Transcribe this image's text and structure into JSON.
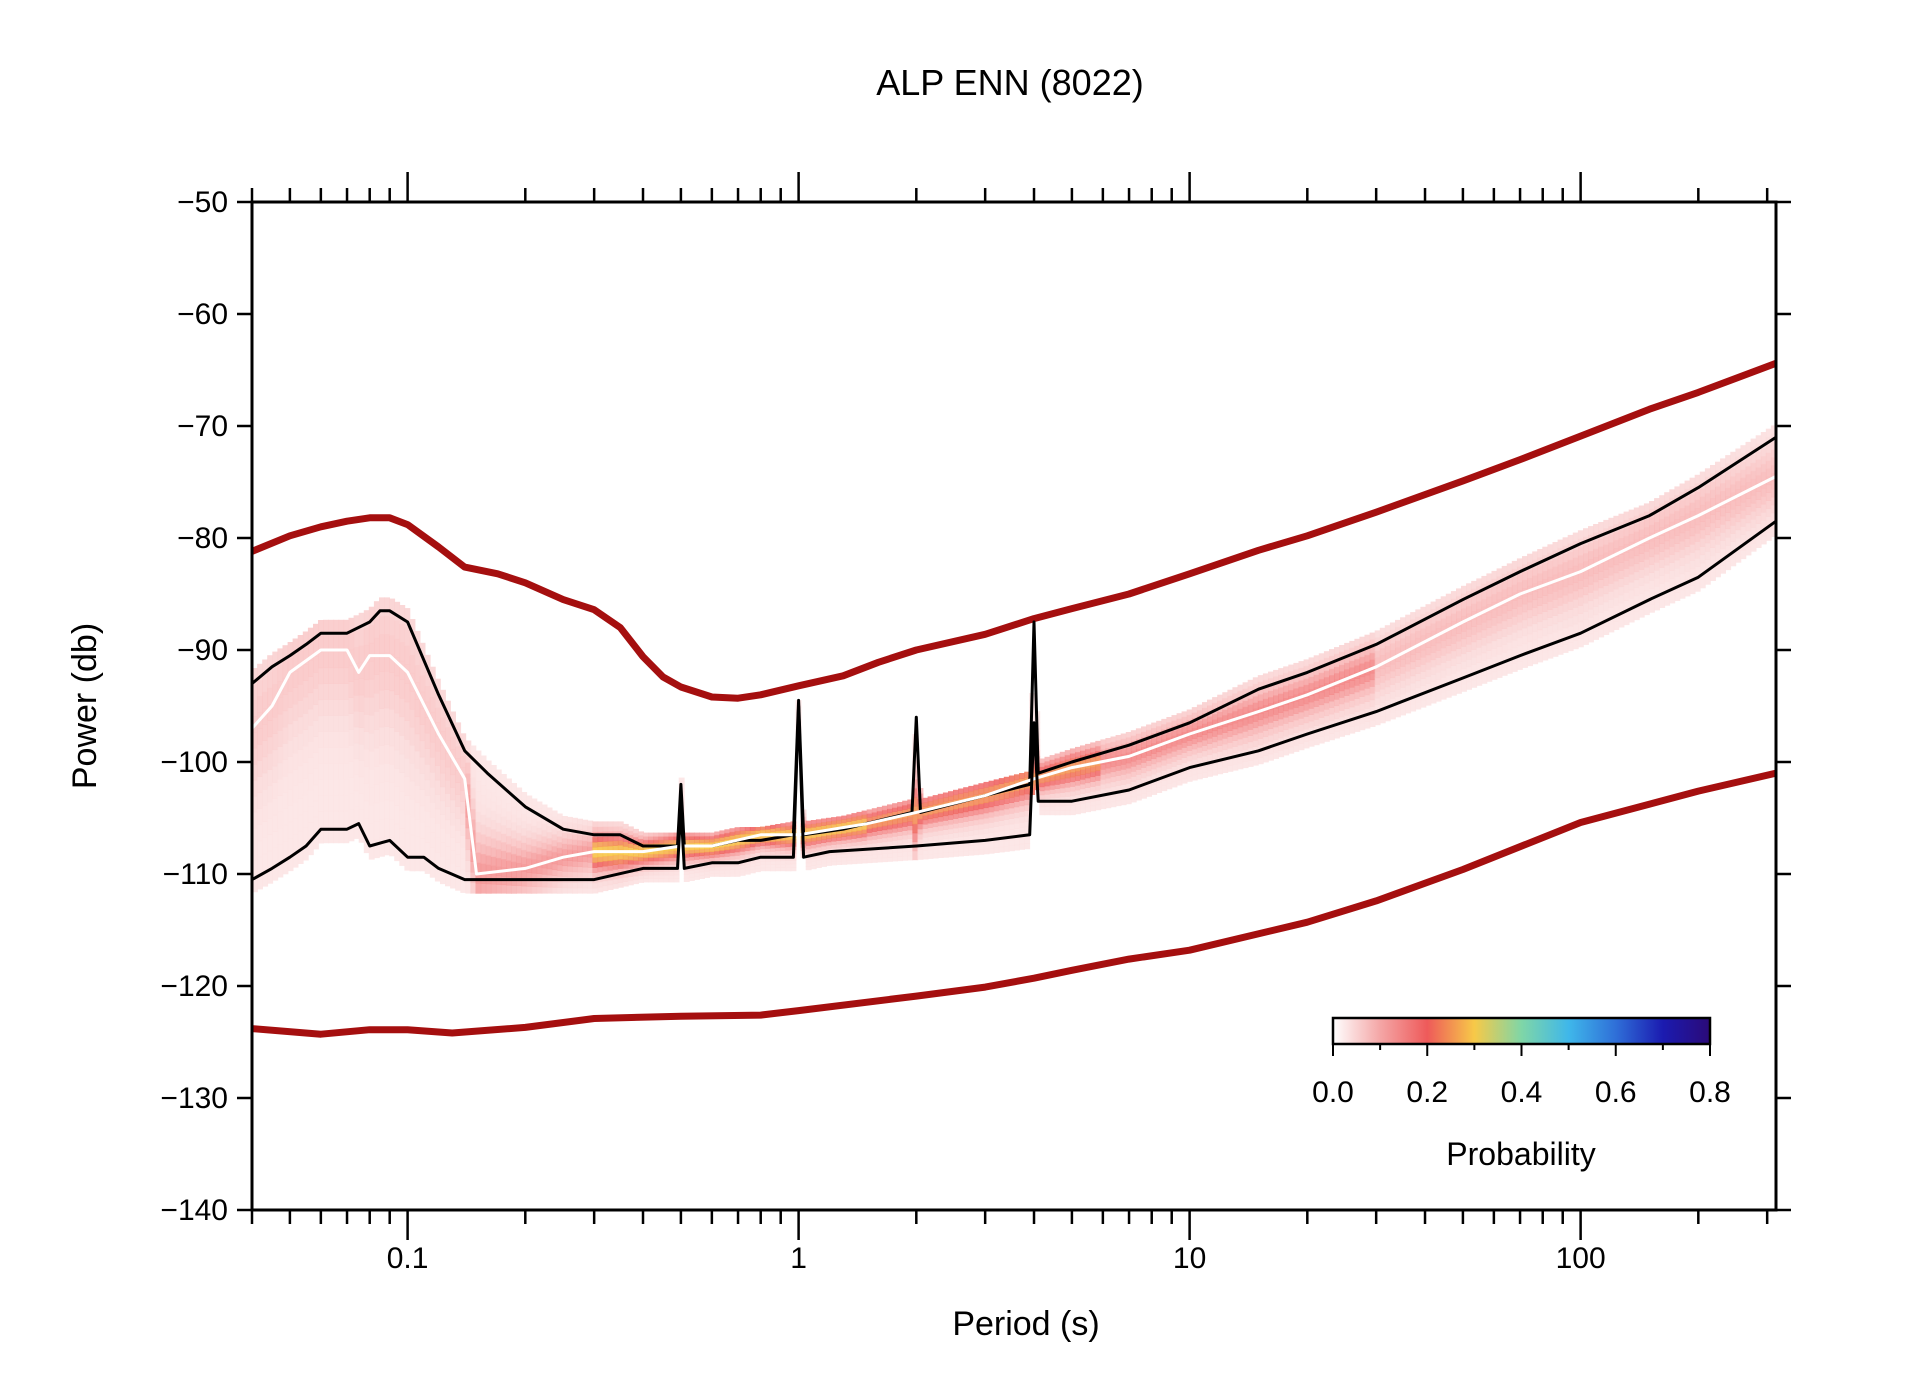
{
  "chart_data": {
    "type": "line",
    "title": "ALP ENN (8022)",
    "xlabel": "Period (s)",
    "ylabel": "Power (db)",
    "x_scale": "log",
    "xlim": [
      0.04,
      316
    ],
    "ylim": [
      -140,
      -50
    ],
    "x_ticks": [
      {
        "value": 0.1,
        "label": "0.1"
      },
      {
        "value": 1,
        "label": "1"
      },
      {
        "value": 10,
        "label": "10"
      },
      {
        "value": 100,
        "label": "100"
      }
    ],
    "y_ticks": [
      {
        "value": -50,
        "label": "−50"
      },
      {
        "value": -60,
        "label": "−60"
      },
      {
        "value": -70,
        "label": "−70"
      },
      {
        "value": -80,
        "label": "−80"
      },
      {
        "value": -90,
        "label": "−90"
      },
      {
        "value": -100,
        "label": "−100"
      },
      {
        "value": -110,
        "label": "−110"
      },
      {
        "value": -120,
        "label": "−120"
      },
      {
        "value": -130,
        "label": "−130"
      },
      {
        "value": -140,
        "label": "−140"
      }
    ],
    "grid": false,
    "colors": {
      "noise_model": "#a50f0f",
      "percentile": "#000000",
      "mode": "#ffffff",
      "frame": "#000000"
    },
    "colorbar": {
      "label": "Probability",
      "range": [
        0,
        0.8
      ],
      "ticks": [
        "0.0",
        "0.2",
        "0.4",
        "0.6",
        "0.8"
      ],
      "colors": [
        "#ffffff",
        "#f4a6a6",
        "#ee5a5a",
        "#f7c948",
        "#7fd6a7",
        "#3fb7ea",
        "#2f6fd8",
        "#1b1bb0",
        "#2b0a78"
      ],
      "placement": "lower-right"
    },
    "series": [
      {
        "role": "high-noise-model",
        "x": [
          0.04,
          0.05,
          0.06,
          0.07,
          0.08,
          0.09,
          0.1,
          0.12,
          0.14,
          0.17,
          0.2,
          0.25,
          0.3,
          0.35,
          0.4,
          0.45,
          0.5,
          0.6,
          0.7,
          0.8,
          1,
          1.3,
          1.6,
          2,
          3,
          4,
          5,
          7,
          10,
          15,
          20,
          30,
          50,
          70,
          100,
          150,
          200,
          316
        ],
        "y": [
          -81.2,
          -79.8,
          -79.0,
          -78.5,
          -78.2,
          -78.2,
          -78.8,
          -80.8,
          -82.6,
          -83.2,
          -84.0,
          -85.5,
          -86.4,
          -88.0,
          -90.6,
          -92.4,
          -93.3,
          -94.2,
          -94.3,
          -94.0,
          -93.2,
          -92.3,
          -91.1,
          -90.0,
          -88.6,
          -87.2,
          -86.3,
          -85.0,
          -83.2,
          -81.1,
          -79.8,
          -77.7,
          -74.9,
          -73.0,
          -70.9,
          -68.5,
          -67.0,
          -64.4
        ]
      },
      {
        "role": "low-noise-model",
        "x": [
          0.04,
          0.06,
          0.08,
          0.1,
          0.13,
          0.2,
          0.3,
          0.5,
          0.8,
          1,
          2,
          3,
          4,
          5,
          7,
          10,
          20,
          30,
          50,
          100,
          200,
          316
        ],
        "y": [
          -123.8,
          -124.3,
          -123.9,
          -123.9,
          -124.2,
          -123.7,
          -122.9,
          -122.7,
          -122.6,
          -122.2,
          -120.9,
          -120.1,
          -119.3,
          -118.6,
          -117.6,
          -116.8,
          -114.3,
          -112.4,
          -109.6,
          -105.4,
          -102.6,
          -101.0
        ]
      },
      {
        "role": "upper-percentile",
        "x": [
          0.04,
          0.045,
          0.05,
          0.055,
          0.06,
          0.07,
          0.08,
          0.085,
          0.09,
          0.1,
          0.12,
          0.14,
          0.16,
          0.2,
          0.25,
          0.3,
          0.35,
          0.4,
          0.49,
          0.5,
          0.51,
          0.6,
          0.7,
          0.8,
          0.97,
          1.0,
          1.03,
          1.3,
          1.95,
          2.0,
          2.05,
          3,
          3.9,
          4.0,
          4.1,
          5,
          7,
          10,
          15,
          20,
          30,
          50,
          70,
          100,
          150,
          200,
          316
        ],
        "y": [
          -93.0,
          -91.5,
          -90.5,
          -89.5,
          -88.5,
          -88.5,
          -87.5,
          -86.5,
          -86.5,
          -87.5,
          -94.0,
          -99.0,
          -101.0,
          -104.0,
          -106.0,
          -106.5,
          -106.5,
          -107.5,
          -107.5,
          -102.0,
          -107.5,
          -107.5,
          -107.0,
          -107.0,
          -106.5,
          -94.5,
          -106.5,
          -106.0,
          -104.5,
          -96.0,
          -104.5,
          -103.0,
          -102.0,
          -87.5,
          -101.0,
          -100.0,
          -98.5,
          -96.5,
          -93.5,
          -92.0,
          -89.5,
          -85.5,
          -83.0,
          -80.5,
          -78.0,
          -75.5,
          -71.0
        ]
      },
      {
        "role": "mode",
        "x": [
          0.04,
          0.045,
          0.05,
          0.06,
          0.07,
          0.075,
          0.08,
          0.09,
          0.1,
          0.12,
          0.14,
          0.15,
          0.2,
          0.25,
          0.3,
          0.4,
          0.5,
          0.6,
          0.8,
          1,
          1.5,
          2,
          3,
          4,
          5,
          7,
          10,
          15,
          20,
          30,
          50,
          70,
          100,
          150,
          200,
          316
        ],
        "y": [
          -97.0,
          -95.0,
          -92.0,
          -90.0,
          -90.0,
          -92.0,
          -90.5,
          -90.5,
          -92.0,
          -97.5,
          -101.5,
          -110.0,
          -109.5,
          -108.5,
          -108.0,
          -108.0,
          -107.5,
          -107.5,
          -106.5,
          -106.5,
          -105.5,
          -104.5,
          -103.0,
          -101.5,
          -100.5,
          -99.5,
          -97.5,
          -95.5,
          -94.0,
          -91.5,
          -87.5,
          -85.0,
          -83.0,
          -80.0,
          -78.0,
          -74.5
        ]
      },
      {
        "role": "lower-percentile",
        "x": [
          0.04,
          0.045,
          0.05,
          0.055,
          0.06,
          0.07,
          0.075,
          0.08,
          0.09,
          0.1,
          0.11,
          0.12,
          0.14,
          0.2,
          0.25,
          0.3,
          0.4,
          0.49,
          0.5,
          0.51,
          0.6,
          0.7,
          0.8,
          0.97,
          1.0,
          1.03,
          1.2,
          2,
          3,
          3.9,
          4.0,
          4.1,
          5,
          7,
          10,
          15,
          20,
          30,
          50,
          70,
          100,
          150,
          200,
          316
        ],
        "y": [
          -110.5,
          -109.5,
          -108.5,
          -107.5,
          -106.0,
          -106.0,
          -105.5,
          -107.5,
          -107.0,
          -108.5,
          -108.5,
          -109.5,
          -110.5,
          -110.5,
          -110.5,
          -110.5,
          -109.5,
          -109.5,
          -104.0,
          -109.5,
          -109.0,
          -109.0,
          -108.5,
          -108.5,
          -95.0,
          -108.5,
          -108.0,
          -107.5,
          -107.0,
          -106.5,
          -96.5,
          -103.5,
          -103.5,
          -102.5,
          -100.5,
          -99.0,
          -97.5,
          -95.5,
          -92.5,
          -90.5,
          -88.5,
          -85.5,
          -83.5,
          -78.5
        ]
      }
    ]
  }
}
